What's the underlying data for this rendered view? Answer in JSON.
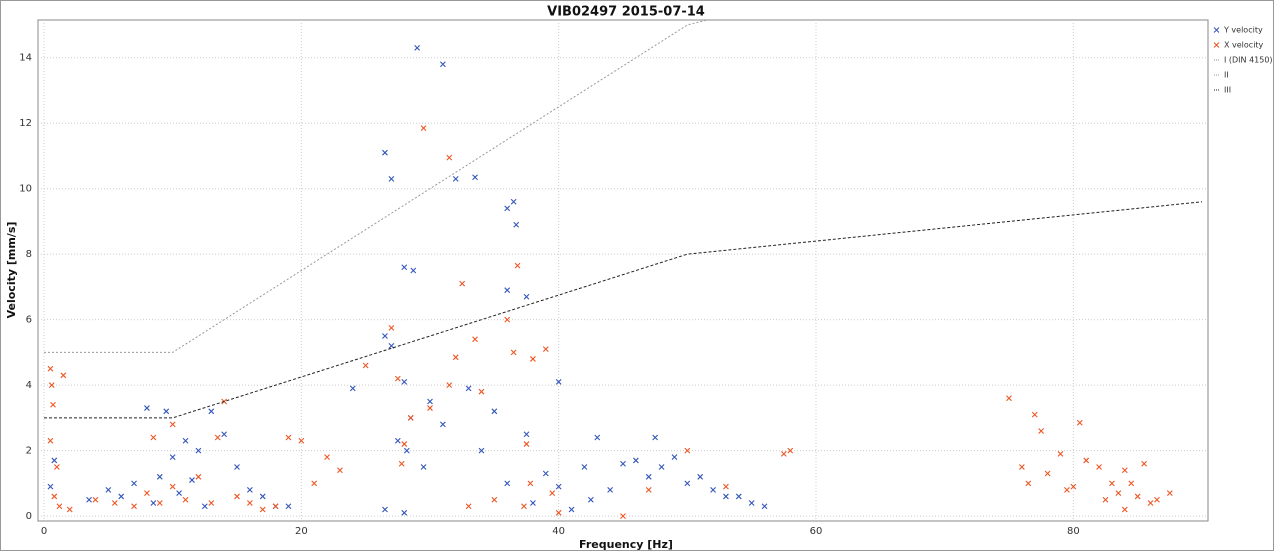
{
  "chart_data": {
    "type": "scatter",
    "title": "VIB02497 2015-07-14",
    "x_label": "Frequency [Hz]",
    "y_label": "Velocity [mm/s]",
    "xlim": [
      0,
      90
    ],
    "ylim": [
      -0.15,
      15
    ],
    "xticks": [
      0,
      20,
      40,
      60,
      80
    ],
    "yticks": [
      0,
      2,
      4,
      6,
      8,
      10,
      12,
      14
    ],
    "grid": true,
    "legend": "top-right",
    "series": [
      {
        "name": "Y velocity",
        "color": "#3355bb",
        "kind": "scatter",
        "x": [
          29,
          31,
          26.5,
          27,
          32,
          33.5,
          36,
          36.5,
          36.7,
          28,
          28.7,
          36,
          37.5,
          26.5,
          27,
          24,
          28,
          28.5,
          28.2,
          30,
          33,
          35,
          37.5,
          40,
          43,
          46,
          47,
          48,
          50,
          52,
          54,
          55,
          56,
          8,
          9.5,
          13,
          11,
          12,
          10,
          9,
          7,
          6,
          5,
          3.5,
          15,
          16,
          17,
          18,
          19,
          0.5,
          0.8,
          26.5,
          28,
          38,
          40,
          41,
          42,
          44,
          45,
          47.5,
          49,
          51,
          53,
          27.5,
          29.5,
          31,
          34,
          36,
          39,
          42.5,
          14,
          8.5,
          10.5,
          12.5,
          11.5
        ],
        "values": [
          14.3,
          13.8,
          11.1,
          10.3,
          10.3,
          10.35,
          9.4,
          9.6,
          8.9,
          7.6,
          7.5,
          6.9,
          6.7,
          5.5,
          5.2,
          3.9,
          4.1,
          3.0,
          2.0,
          3.5,
          3.9,
          3.2,
          2.5,
          4.1,
          2.4,
          1.7,
          1.2,
          1.5,
          1.0,
          0.8,
          0.6,
          0.4,
          0.3,
          3.3,
          3.2,
          3.2,
          2.3,
          2.0,
          1.8,
          1.2,
          1.0,
          0.6,
          0.8,
          0.5,
          1.5,
          0.8,
          0.6,
          0.3,
          0.3,
          0.9,
          1.7,
          0.2,
          0.1,
          0.4,
          0.9,
          0.2,
          1.5,
          0.8,
          1.6,
          2.4,
          1.8,
          1.2,
          0.6,
          2.3,
          1.5,
          2.8,
          2.0,
          1.0,
          1.3,
          0.5,
          2.5,
          0.4,
          0.7,
          0.3,
          1.1
        ]
      },
      {
        "name": "X velocity",
        "color": "#ee5522",
        "kind": "scatter",
        "x": [
          29.5,
          31.5,
          32.5,
          36.8,
          27,
          36,
          36.5,
          38,
          39,
          25,
          33.5,
          32,
          27.5,
          28.5,
          28,
          27.8,
          30,
          31.5,
          34,
          0.5,
          0.6,
          1.5,
          0.7,
          0.5,
          1.0,
          0.8,
          1.2,
          2,
          4,
          5.5,
          7,
          8,
          9,
          10,
          11,
          12,
          13,
          14,
          13.5,
          15,
          16,
          17,
          18,
          19,
          20,
          21,
          22,
          23,
          8.5,
          10,
          37.5,
          37.8,
          37.3,
          35,
          33,
          39.5,
          40,
          45,
          47,
          50,
          53,
          57.5,
          58,
          75,
          76,
          76.5,
          77,
          77.5,
          78,
          79,
          80,
          80.5,
          81,
          82,
          82.5,
          83,
          83.5,
          84,
          84.5,
          85,
          85.5,
          86,
          86.5,
          87.5,
          84,
          79.5
        ],
        "values": [
          11.85,
          10.95,
          7.1,
          7.65,
          5.75,
          6.0,
          5.0,
          4.8,
          5.1,
          4.6,
          5.4,
          4.85,
          4.2,
          3.0,
          2.2,
          1.6,
          3.3,
          4.0,
          3.8,
          4.5,
          4.0,
          4.3,
          3.4,
          2.3,
          1.5,
          0.6,
          0.3,
          0.2,
          0.5,
          0.4,
          0.3,
          0.7,
          0.4,
          0.9,
          0.5,
          1.2,
          0.4,
          3.5,
          2.4,
          0.6,
          0.4,
          0.2,
          0.3,
          2.4,
          2.3,
          1.0,
          1.8,
          1.4,
          2.4,
          2.8,
          2.2,
          1.0,
          0.3,
          0.5,
          0.3,
          0.7,
          0.1,
          0.0,
          0.8,
          2.0,
          0.9,
          1.9,
          2.0,
          3.6,
          1.5,
          1.0,
          3.1,
          2.6,
          1.3,
          1.9,
          0.9,
          2.85,
          1.7,
          1.5,
          0.5,
          1.0,
          0.7,
          1.4,
          1.0,
          0.6,
          1.6,
          0.4,
          0.5,
          0.7,
          0.2,
          0.8
        ]
      },
      {
        "name": "I (DIN 4150)",
        "color": "#888888",
        "kind": "line",
        "x": [
          0,
          10,
          50,
          90
        ],
        "values": [
          20,
          20,
          40,
          48
        ]
      },
      {
        "name": "II",
        "color": "#999999",
        "kind": "line",
        "x": [
          0,
          10,
          50,
          90
        ],
        "values": [
          5,
          5,
          15,
          19
        ]
      },
      {
        "name": "III",
        "color": "#222222",
        "kind": "line",
        "x": [
          0,
          10,
          50,
          90
        ],
        "values": [
          3,
          3,
          8,
          9.6
        ]
      }
    ]
  }
}
